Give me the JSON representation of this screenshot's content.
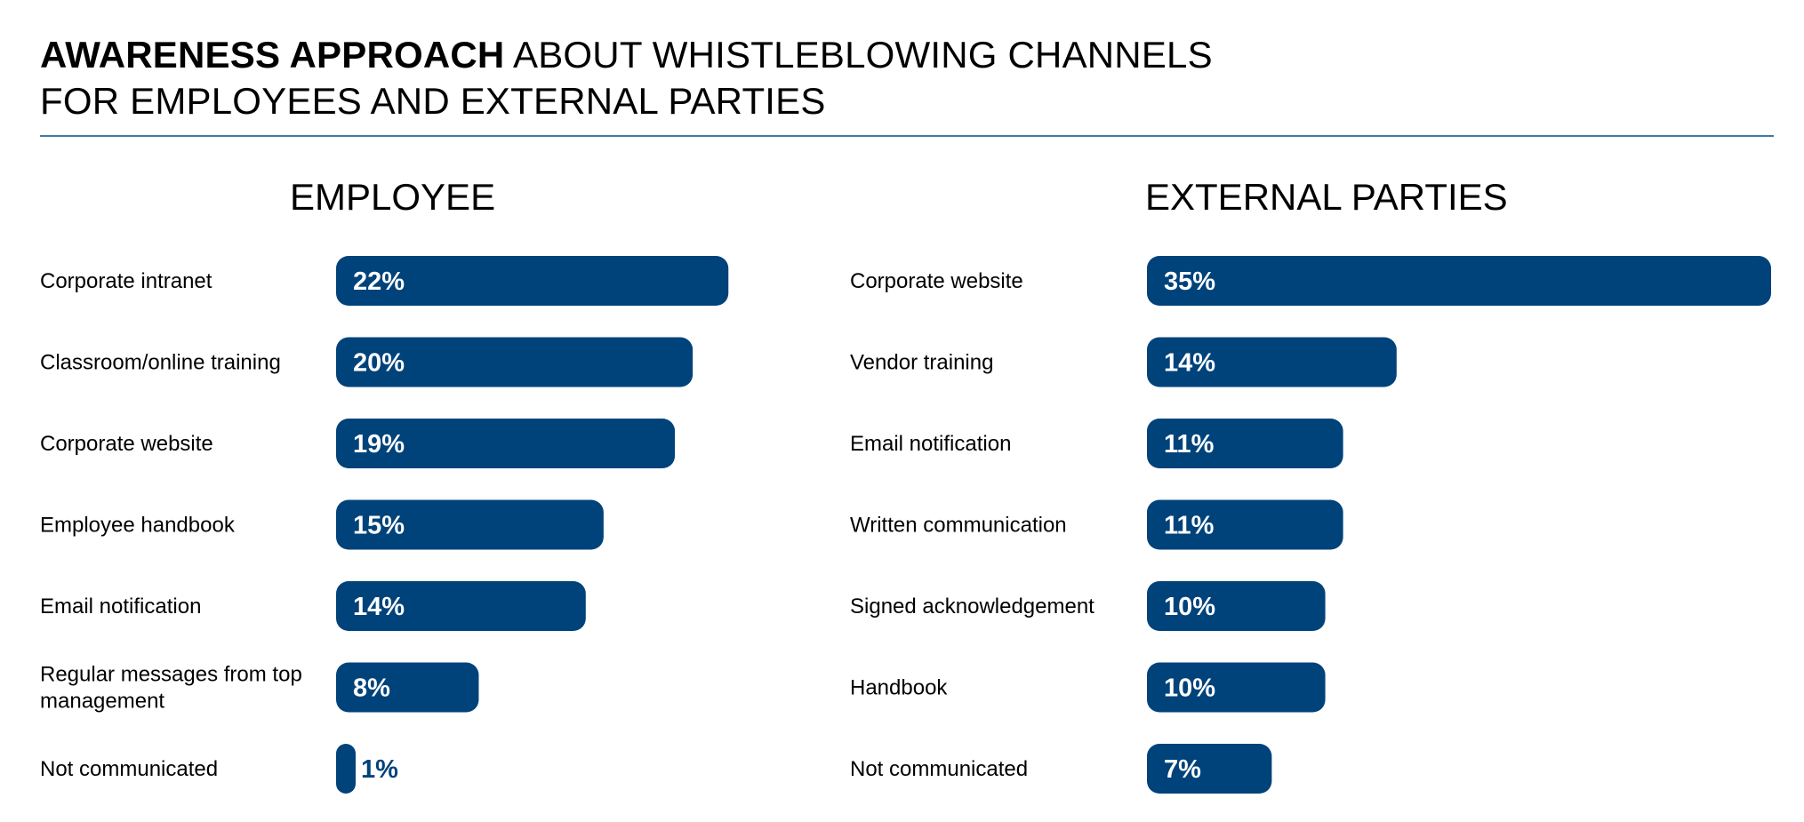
{
  "title": {
    "bold": "AWARENESS APPROACH",
    "rest_line1": " ABOUT WHISTLEBLOWING CHANNELS",
    "line2": "FOR EMPLOYEES AND EXTERNAL PARTIES"
  },
  "colors": {
    "bar": "#00427a",
    "text": "#000000",
    "rule": "#3f7aa5"
  },
  "chart_data": [
    {
      "type": "bar",
      "orientation": "horizontal",
      "title": "EMPLOYEE",
      "xlim": [
        0,
        35
      ],
      "unit": "%",
      "categories": [
        "Corporate intranet",
        "Classroom/online training",
        "Corporate website",
        "Employee handbook",
        "Email notification",
        "Regular messages from top management",
        "Not communicated"
      ],
      "values": [
        22,
        20,
        19,
        15,
        14,
        8,
        1
      ],
      "labels": [
        "22%",
        "20%",
        "19%",
        "15%",
        "14%",
        "8%",
        "1%"
      ]
    },
    {
      "type": "bar",
      "orientation": "horizontal",
      "title": "EXTERNAL PARTIES",
      "xlim": [
        0,
        35
      ],
      "unit": "%",
      "categories": [
        "Corporate website",
        "Vendor training",
        "Email notification",
        "Written communication",
        "Signed acknowledgement",
        "Handbook",
        "Not communicated"
      ],
      "values": [
        35,
        14,
        11,
        11,
        10,
        10,
        7
      ],
      "labels": [
        "35%",
        "14%",
        "11%",
        "11%",
        "10%",
        "10%",
        "7%"
      ]
    }
  ]
}
